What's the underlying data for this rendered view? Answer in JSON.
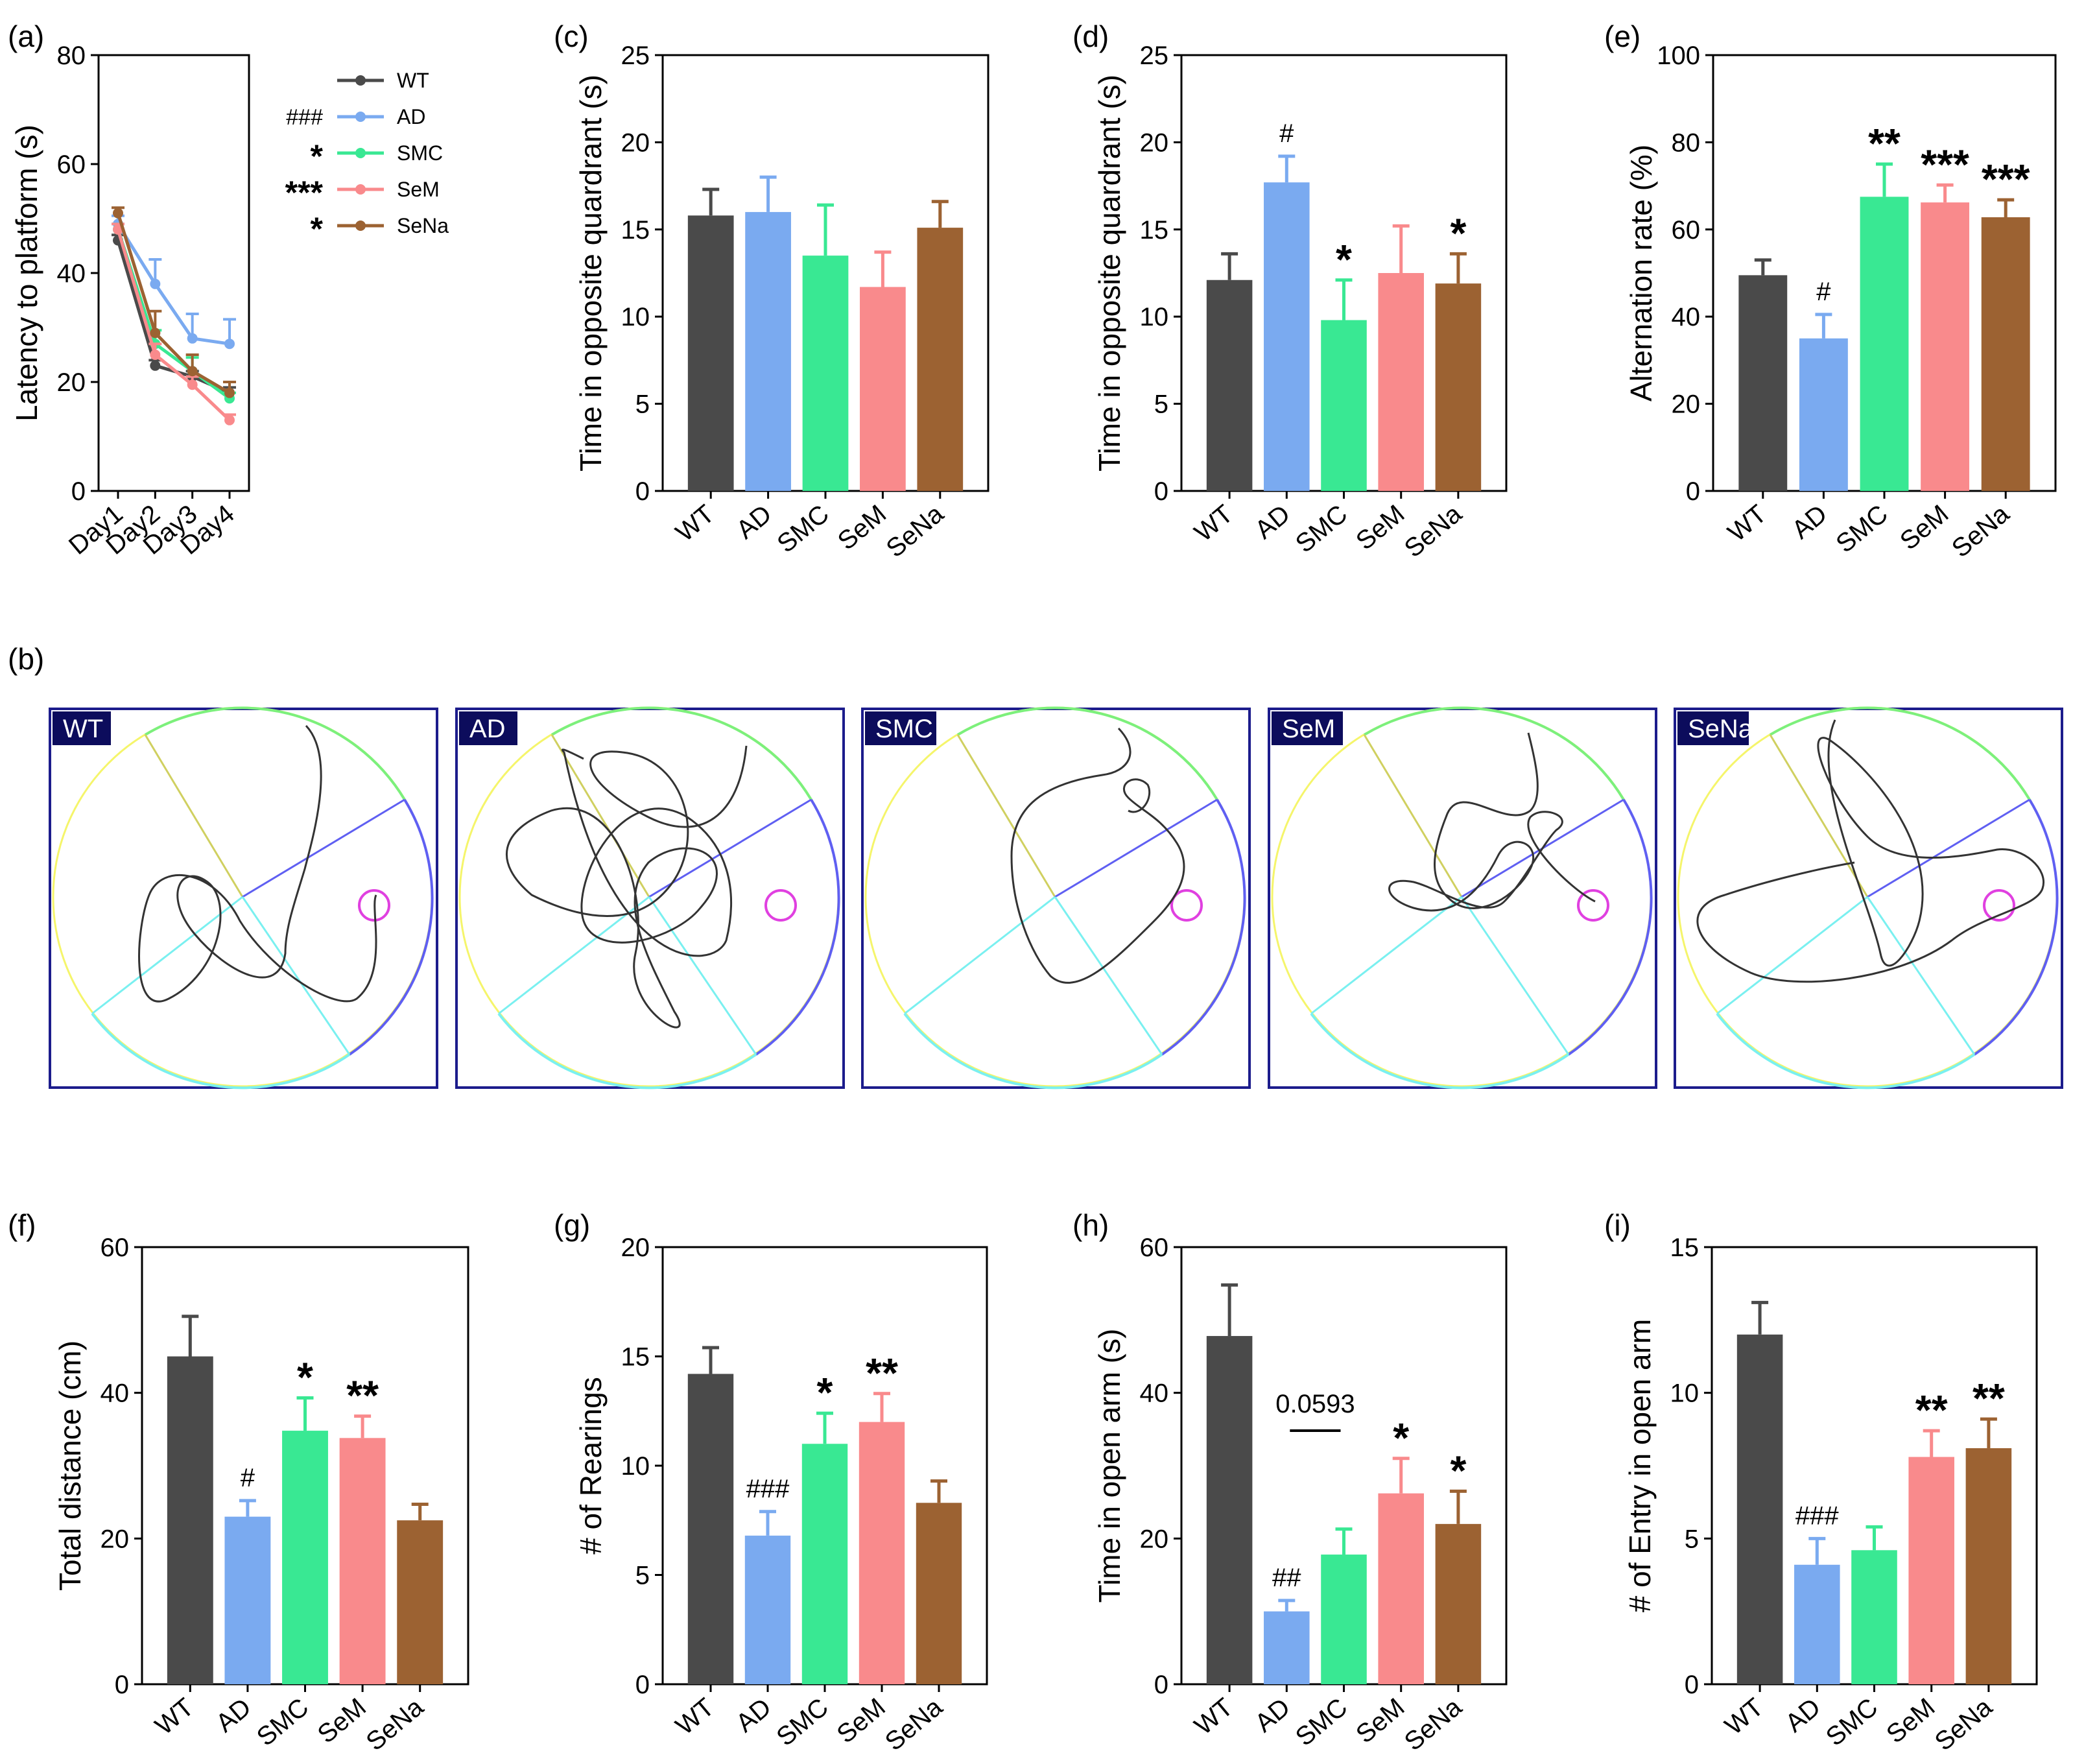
{
  "colors": {
    "WT": "#4a4a4a",
    "AD": "#7aaaf0",
    "SMC": "#39e893",
    "SeM": "#f98a8c",
    "SeNa": "#9c6232"
  },
  "chart_data": [
    {
      "id": "a",
      "panel_label": "(a)",
      "type": "line",
      "x": [
        "Day1",
        "Day2",
        "Day3",
        "Day4"
      ],
      "ylabel": "Latency to platform (s)",
      "ylim": [
        0,
        80
      ],
      "yticks": [
        0,
        20,
        40,
        60,
        80
      ],
      "series": [
        {
          "name": "WT",
          "values": [
            46,
            23,
            21,
            18
          ],
          "errors": [
            1,
            1,
            1,
            1
          ],
          "sig": ""
        },
        {
          "name": "AD",
          "values": [
            49,
            38,
            28,
            27
          ],
          "errors": [
            1.5,
            4.5,
            4.5,
            4.5
          ],
          "sig": "###"
        },
        {
          "name": "SMC",
          "values": [
            48,
            27,
            22,
            17
          ],
          "errors": [
            1,
            2.5,
            2.5,
            1
          ],
          "sig": "*"
        },
        {
          "name": "SeM",
          "values": [
            48,
            25,
            19.5,
            13
          ],
          "errors": [
            1,
            2,
            1.5,
            1
          ],
          "sig": "***"
        },
        {
          "name": "SeNa",
          "values": [
            51,
            29,
            22,
            18
          ],
          "errors": [
            1,
            4,
            3,
            2
          ],
          "sig": "*"
        }
      ]
    },
    {
      "id": "c",
      "panel_label": "(c)",
      "type": "bar",
      "categories": [
        "WT",
        "AD",
        "SMC",
        "SeM",
        "SeNa"
      ],
      "values": [
        15.8,
        16,
        13.5,
        11.7,
        15.1
      ],
      "errors": [
        1.5,
        2,
        2.9,
        2,
        1.5
      ],
      "ylabel": "Time in opposite quardrant (s)",
      "ylim": [
        0,
        25
      ],
      "yticks": [
        0,
        5,
        10,
        15,
        20,
        25
      ],
      "sig": [
        "",
        "",
        "",
        "",
        ""
      ]
    },
    {
      "id": "d",
      "panel_label": "(d)",
      "type": "bar",
      "categories": [
        "WT",
        "AD",
        "SMC",
        "SeM",
        "SeNa"
      ],
      "values": [
        12.1,
        17.7,
        9.8,
        12.5,
        11.9
      ],
      "errors": [
        1.5,
        1.5,
        2.3,
        2.7,
        1.7
      ],
      "ylabel": "Time in opposite quardrant (s)",
      "ylim": [
        0,
        25
      ],
      "yticks": [
        0,
        5,
        10,
        15,
        20,
        25
      ],
      "sig": [
        "",
        "#",
        "*",
        "",
        "*"
      ]
    },
    {
      "id": "e",
      "panel_label": "(e)",
      "type": "bar",
      "categories": [
        "WT",
        "AD",
        "SMC",
        "SeM",
        "SeNa"
      ],
      "values": [
        49.5,
        35,
        67.5,
        66.2,
        62.8
      ],
      "errors": [
        3.5,
        5.5,
        7.5,
        4,
        4
      ],
      "ylabel": "Alternation rate (%)",
      "ylim": [
        0,
        100
      ],
      "yticks": [
        0,
        20,
        40,
        60,
        80,
        100
      ],
      "sig": [
        "",
        "#",
        "**",
        "***",
        "***"
      ]
    },
    {
      "id": "f",
      "panel_label": "(f)",
      "type": "bar",
      "categories": [
        "WT",
        "AD",
        "SMC",
        "SeM",
        "SeNa"
      ],
      "values": [
        45,
        23,
        34.8,
        33.8,
        22.5
      ],
      "errors": [
        5.5,
        2.2,
        4.5,
        3,
        2.2
      ],
      "ylabel": "Total distance (cm)",
      "ylim": [
        0,
        60
      ],
      "yticks": [
        0,
        20,
        40,
        60
      ],
      "sig": [
        "",
        "#",
        "*",
        "**",
        ""
      ]
    },
    {
      "id": "g",
      "panel_label": "(g)",
      "type": "bar",
      "categories": [
        "WT",
        "AD",
        "SMC",
        "SeM",
        "SeNa"
      ],
      "values": [
        14.2,
        6.8,
        11,
        12,
        8.3
      ],
      "errors": [
        1.2,
        1.1,
        1.4,
        1.3,
        1
      ],
      "ylabel": "# of Rearings",
      "ylim": [
        0,
        20
      ],
      "yticks": [
        0,
        5,
        10,
        15,
        20
      ],
      "sig": [
        "",
        "###",
        "*",
        "**",
        ""
      ]
    },
    {
      "id": "h",
      "panel_label": "(h)",
      "type": "bar",
      "categories": [
        "WT",
        "AD",
        "SMC",
        "SeM",
        "SeNa"
      ],
      "values": [
        47.8,
        10,
        17.8,
        26.2,
        22
      ],
      "errors": [
        7,
        1.5,
        3.5,
        4.8,
        4.5
      ],
      "ylabel": "Time in open arm (s)",
      "ylim": [
        0,
        60
      ],
      "yticks": [
        0,
        20,
        40,
        60
      ],
      "sig": [
        "",
        "##",
        "",
        "*",
        "*"
      ],
      "annotation": {
        "text": "0.0593",
        "between": [
          "AD",
          "SMC"
        ]
      }
    },
    {
      "id": "i",
      "panel_label": "(i)",
      "type": "bar",
      "categories": [
        "WT",
        "AD",
        "SMC",
        "SeM",
        "SeNa"
      ],
      "values": [
        12,
        4.1,
        4.6,
        7.8,
        8.1
      ],
      "errors": [
        1.1,
        0.9,
        0.8,
        0.9,
        1
      ],
      "ylabel": "# of Entry in open arm",
      "ylim": [
        0,
        15
      ],
      "yticks": [
        0,
        5,
        10,
        15
      ],
      "sig": [
        "",
        "###",
        "",
        "**",
        "**"
      ]
    }
  ],
  "tracks": {
    "panel_label": "(b)",
    "labels": [
      "WT",
      "AD",
      "SMC",
      "SeM",
      "SeNa"
    ]
  }
}
